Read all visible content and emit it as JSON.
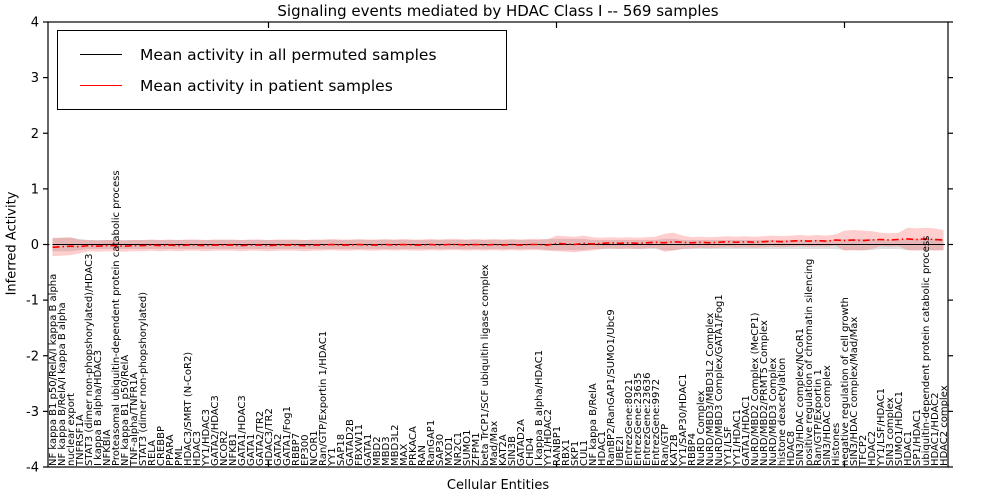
{
  "chart_data": {
    "type": "line",
    "title": "Signaling events mediated by HDAC Class I -- 569 samples",
    "xlabel": "Cellular Entities",
    "ylabel": "Inferred Activity",
    "ylim": [
      -4,
      4
    ],
    "yticks": [
      "-4",
      "-3",
      "-2",
      "-1",
      "0",
      "1",
      "2",
      "3",
      "4"
    ],
    "grid": false,
    "legend_position": "upper left",
    "legend": [
      {
        "label": "Mean activity in all permuted samples",
        "color": "#000000",
        "style": "solid"
      },
      {
        "label": "Mean activity in patient samples",
        "color": "#ff0000",
        "style": "dashdot"
      }
    ],
    "zero_line_style": "dotted",
    "band_colors": {
      "permuted": "rgba(120,120,120,0.25)",
      "patient": "rgba(255,80,80,0.28)"
    },
    "x_major_tick_indices": [
      24,
      56,
      88
    ],
    "categories": [
      "NF kappa B1 p50/RelA/I kappa B alpha",
      "NF kappa B/RelA/I kappa B alpha",
      "nuclear export",
      "TNFRSF1A",
      "STAT3 (dimer non-phopshorylated)/HDAC3",
      "I kappa B alpha/HDAC3",
      "NFKBIA",
      "Proteasomal ubiquitin-dependent protein catabolic process",
      "NF kappa B1 p50/RelA",
      "TNF-alpha/TNFR1A",
      "STAT3 (dimer non-phopshorylated)",
      "RELA",
      "CREBBP",
      "PPARA",
      "PML",
      "HDAC3/SMRT (N-CoR2)",
      "HDAC3",
      "YY1/HDAC3",
      "GATA2/HDAC3",
      "NCOR2",
      "NFKB1",
      "GATA1/HDAC3",
      "GATA1",
      "GATA2/TR2",
      "HDAC3/TR2",
      "GATA2",
      "GATA1/Fog1",
      "RBBP7",
      "EP300",
      "NCOR1",
      "Ran/GTP/Exportin 1/HDAC1",
      "YY1",
      "SAP18",
      "GATAD2B",
      "FBXW11",
      "GATA1",
      "MBD2",
      "MBD3",
      "MBD3L2",
      "MAX",
      "PRKACA",
      "RAN",
      "RanGAP1",
      "SAP30",
      "MXD1",
      "NR2C1",
      "SUMO1",
      "ZFPM1",
      "beta TrCP1/SCF ubiquitin ligase complex",
      "Mad/Max",
      "KAT2A",
      "SIN3B",
      "GATAD2A",
      "CHD4",
      "I kappa B alpha/HDAC1",
      "YY1/HDAC2",
      "RANBP1",
      "RBX1",
      "SKP1",
      "CUL1",
      "NF kappa B/RelA",
      "HDAC1",
      "RanBP2/RanGAP1/SUMO1/Ubc9",
      "UBE2I",
      "EntrezGene:8021",
      "EntrezGene:23635",
      "EntrezGene:23636",
      "EntrezGene:9972",
      "Ran/GTP",
      "KAT2B",
      "YY1/SAP30/HDAC1",
      "RBBP4",
      "NuRD Complex",
      "NuRD/MBD3/MBD3L2 Complex",
      "NuRD/MBD3 Complex/GATA1/Fog1",
      "YY1/LSF",
      "YY1/HDAC1",
      "GATA1/HDAC1",
      "NuRD/MBD2 Complex (MeCP1)",
      "NuRD/MBD2/PRMT5 Complex",
      "NuRD/MBD3 Complex",
      "histone deacetylation",
      "HDAC8",
      "SIN3/HDAC complex/NCoR1",
      "positive regulation of chromatin silencing",
      "Ran/GTP/Exportin 1",
      "SIN3/HDAC complex",
      "Histones",
      "negative regulation of cell growth",
      "SIN3/HDAC complex/Mad/Max",
      "TFCP2",
      "HDAC2",
      "YY1/LSF/HDAC1",
      "SIN3 complex",
      "SUMO1/HDAC1",
      "HDAC1",
      "SP1/HDAC1",
      "ubiquitin-dependent protein catabolic process",
      "HDAC1/HDAC2",
      "HDAC2 complex"
    ],
    "series": [
      {
        "name": "Mean activity in all permuted samples",
        "values": [
          0,
          0,
          0,
          0,
          0,
          0,
          0,
          0,
          0,
          0,
          0,
          0,
          0,
          0,
          0,
          0,
          0,
          0,
          0,
          0,
          0,
          0,
          0,
          0,
          0,
          0,
          0,
          0,
          0,
          0,
          0,
          0,
          0,
          0,
          0,
          0,
          0,
          0,
          0,
          0,
          0,
          0,
          0,
          0,
          0,
          0,
          0,
          0,
          0,
          0,
          0,
          0,
          0,
          0,
          0,
          0,
          0,
          0,
          0,
          0,
          0,
          0,
          0,
          0,
          0,
          0,
          0,
          0,
          0,
          0,
          0,
          0,
          0,
          0,
          0,
          0,
          0,
          0,
          0,
          0,
          0,
          0,
          0,
          0,
          0,
          0,
          0,
          0,
          0,
          0,
          0,
          0,
          0,
          0,
          0,
          0,
          0,
          0,
          0,
          0
        ],
        "band_halfwidth": [
          0.12,
          0.12,
          0.12,
          0.1,
          0.08,
          0.08,
          0.08,
          0.08,
          0.08,
          0.08,
          0.08,
          0.08,
          0.08,
          0.08,
          0.08,
          0.08,
          0.08,
          0.08,
          0.08,
          0.08,
          0.08,
          0.08,
          0.08,
          0.08,
          0.08,
          0.08,
          0.08,
          0.08,
          0.08,
          0.08,
          0.08,
          0.08,
          0.08,
          0.08,
          0.08,
          0.08,
          0.08,
          0.08,
          0.08,
          0.08,
          0.08,
          0.08,
          0.08,
          0.08,
          0.08,
          0.08,
          0.08,
          0.08,
          0.08,
          0.08,
          0.08,
          0.08,
          0.08,
          0.08,
          0.08,
          0.1,
          0.1,
          0.1,
          0.1,
          0.1,
          0.08,
          0.08,
          0.08,
          0.08,
          0.08,
          0.08,
          0.08,
          0.08,
          0.1,
          0.1,
          0.08,
          0.08,
          0.08,
          0.08,
          0.08,
          0.08,
          0.08,
          0.08,
          0.08,
          0.08,
          0.08,
          0.08,
          0.08,
          0.08,
          0.08,
          0.08,
          0.08,
          0.08,
          0.1,
          0.1,
          0.1,
          0.1,
          0.08,
          0.08,
          0.08,
          0.1,
          0.1,
          0.1,
          0.1,
          0.1
        ]
      },
      {
        "name": "Mean activity in patient samples",
        "values": [
          -0.05,
          -0.04,
          -0.03,
          -0.04,
          -0.02,
          -0.03,
          -0.02,
          -0.02,
          -0.03,
          -0.02,
          -0.02,
          -0.01,
          -0.02,
          -0.01,
          -0.02,
          -0.01,
          -0.01,
          -0.02,
          -0.01,
          -0.01,
          -0.01,
          -0.02,
          -0.01,
          -0.01,
          -0.02,
          -0.01,
          -0.01,
          -0.01,
          -0.02,
          -0.01,
          -0.01,
          0,
          -0.01,
          -0.01,
          0,
          -0.01,
          -0.01,
          0,
          -0.01,
          0,
          -0.01,
          -0.01,
          0,
          -0.01,
          0,
          0,
          -0.01,
          0,
          -0.01,
          0,
          -0.01,
          0,
          -0.01,
          0,
          0,
          -0.01,
          0.02,
          0.01,
          0,
          0.02,
          0.01,
          0.02,
          0.03,
          0.02,
          0.03,
          0.02,
          0.03,
          0.04,
          0.03,
          0.05,
          0.04,
          0.03,
          0.04,
          0.03,
          0.04,
          0.05,
          0.04,
          0.05,
          0.04,
          0.05,
          0.06,
          0.05,
          0.06,
          0.07,
          0.06,
          0.07,
          0.06,
          0.08,
          0.07,
          0.08,
          0.07,
          0.08,
          0.09,
          0.08,
          0.09,
          0.1,
          0.09,
          0.1,
          0.09,
          0.08
        ],
        "band_halfwidth": [
          0.16,
          0.16,
          0.16,
          0.12,
          0.1,
          0.1,
          0.1,
          0.1,
          0.1,
          0.1,
          0.1,
          0.1,
          0.1,
          0.1,
          0.1,
          0.1,
          0.1,
          0.1,
          0.1,
          0.1,
          0.1,
          0.1,
          0.1,
          0.1,
          0.1,
          0.1,
          0.1,
          0.1,
          0.1,
          0.1,
          0.1,
          0.1,
          0.1,
          0.1,
          0.1,
          0.1,
          0.1,
          0.1,
          0.1,
          0.1,
          0.1,
          0.1,
          0.1,
          0.1,
          0.1,
          0.1,
          0.1,
          0.1,
          0.1,
          0.1,
          0.1,
          0.1,
          0.1,
          0.1,
          0.1,
          0.1,
          0.14,
          0.14,
          0.14,
          0.14,
          0.12,
          0.1,
          0.1,
          0.1,
          0.1,
          0.1,
          0.1,
          0.1,
          0.16,
          0.16,
          0.12,
          0.1,
          0.1,
          0.1,
          0.1,
          0.1,
          0.1,
          0.1,
          0.1,
          0.1,
          0.1,
          0.1,
          0.1,
          0.1,
          0.1,
          0.1,
          0.1,
          0.1,
          0.18,
          0.18,
          0.18,
          0.16,
          0.12,
          0.12,
          0.12,
          0.2,
          0.2,
          0.2,
          0.2,
          0.18
        ]
      }
    ]
  }
}
